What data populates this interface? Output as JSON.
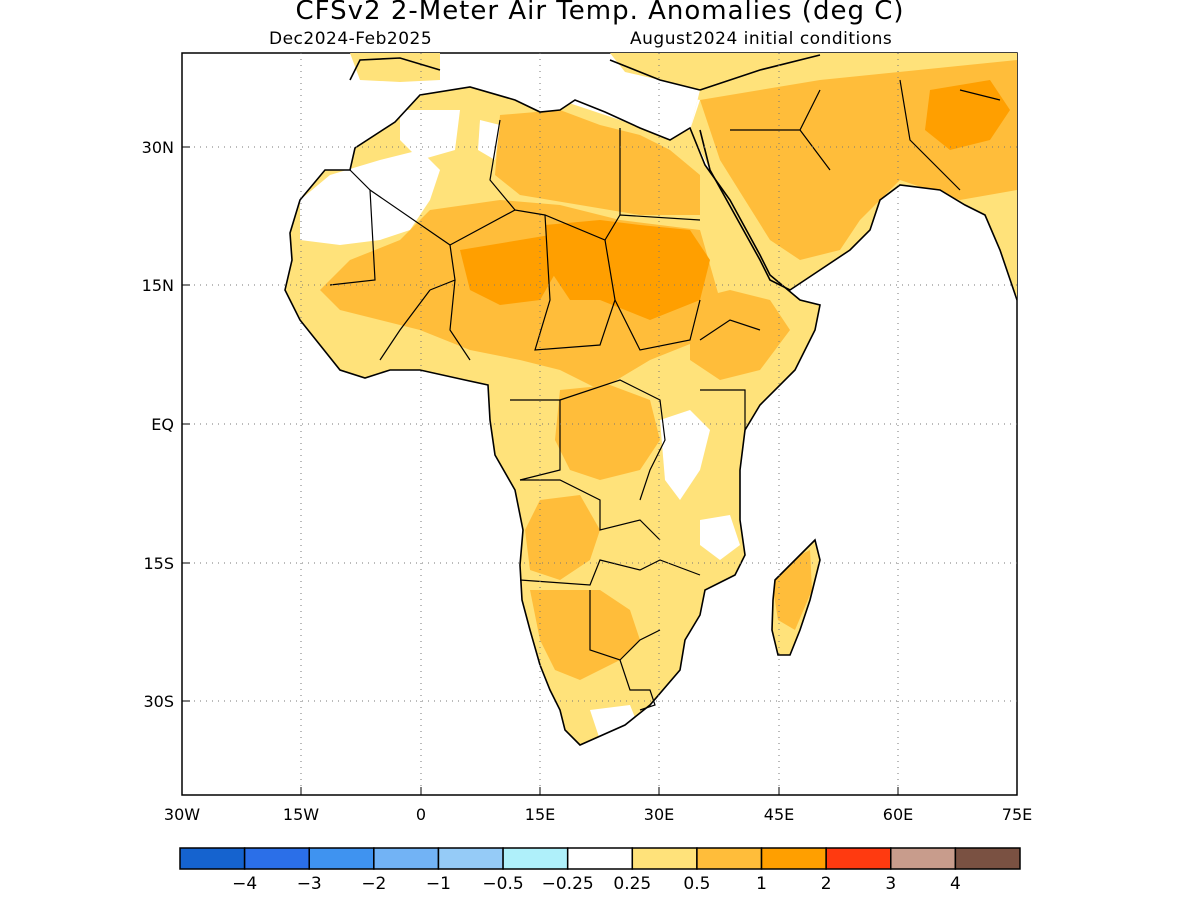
{
  "title": "CFSv2 2-Meter Air Temp. Anomalies (deg C)",
  "subtitle_left": "Dec2024-Feb2025",
  "subtitle_right": "August2024 initial conditions",
  "lon_ticks": [
    "30W",
    "15W",
    "0",
    "15E",
    "30E",
    "45E",
    "60E",
    "75E"
  ],
  "lat_ticks": [
    "30N",
    "15N",
    "EQ",
    "15S",
    "30S"
  ],
  "colorbar": {
    "colors": [
      "#1563cf",
      "#2b6fe8",
      "#3f93f0",
      "#72b3f5",
      "#95cbf7",
      "#aff0fa",
      "#ffffff",
      "#ffe27a",
      "#ffbd3a",
      "#ff9f00",
      "#ff3a10",
      "#c89c8c",
      "#7a5142"
    ],
    "labels": [
      "-4",
      "-3",
      "-2",
      "-1",
      "-0.5",
      "-0.25",
      "0.25",
      "0.5",
      "1",
      "2",
      "3",
      "4"
    ]
  },
  "colors": {
    "anomaly_low": "#ffe27a",
    "anomaly_mid": "#ffbd3a",
    "anomaly_high": "#ff9f00",
    "coast": "#000000"
  }
}
